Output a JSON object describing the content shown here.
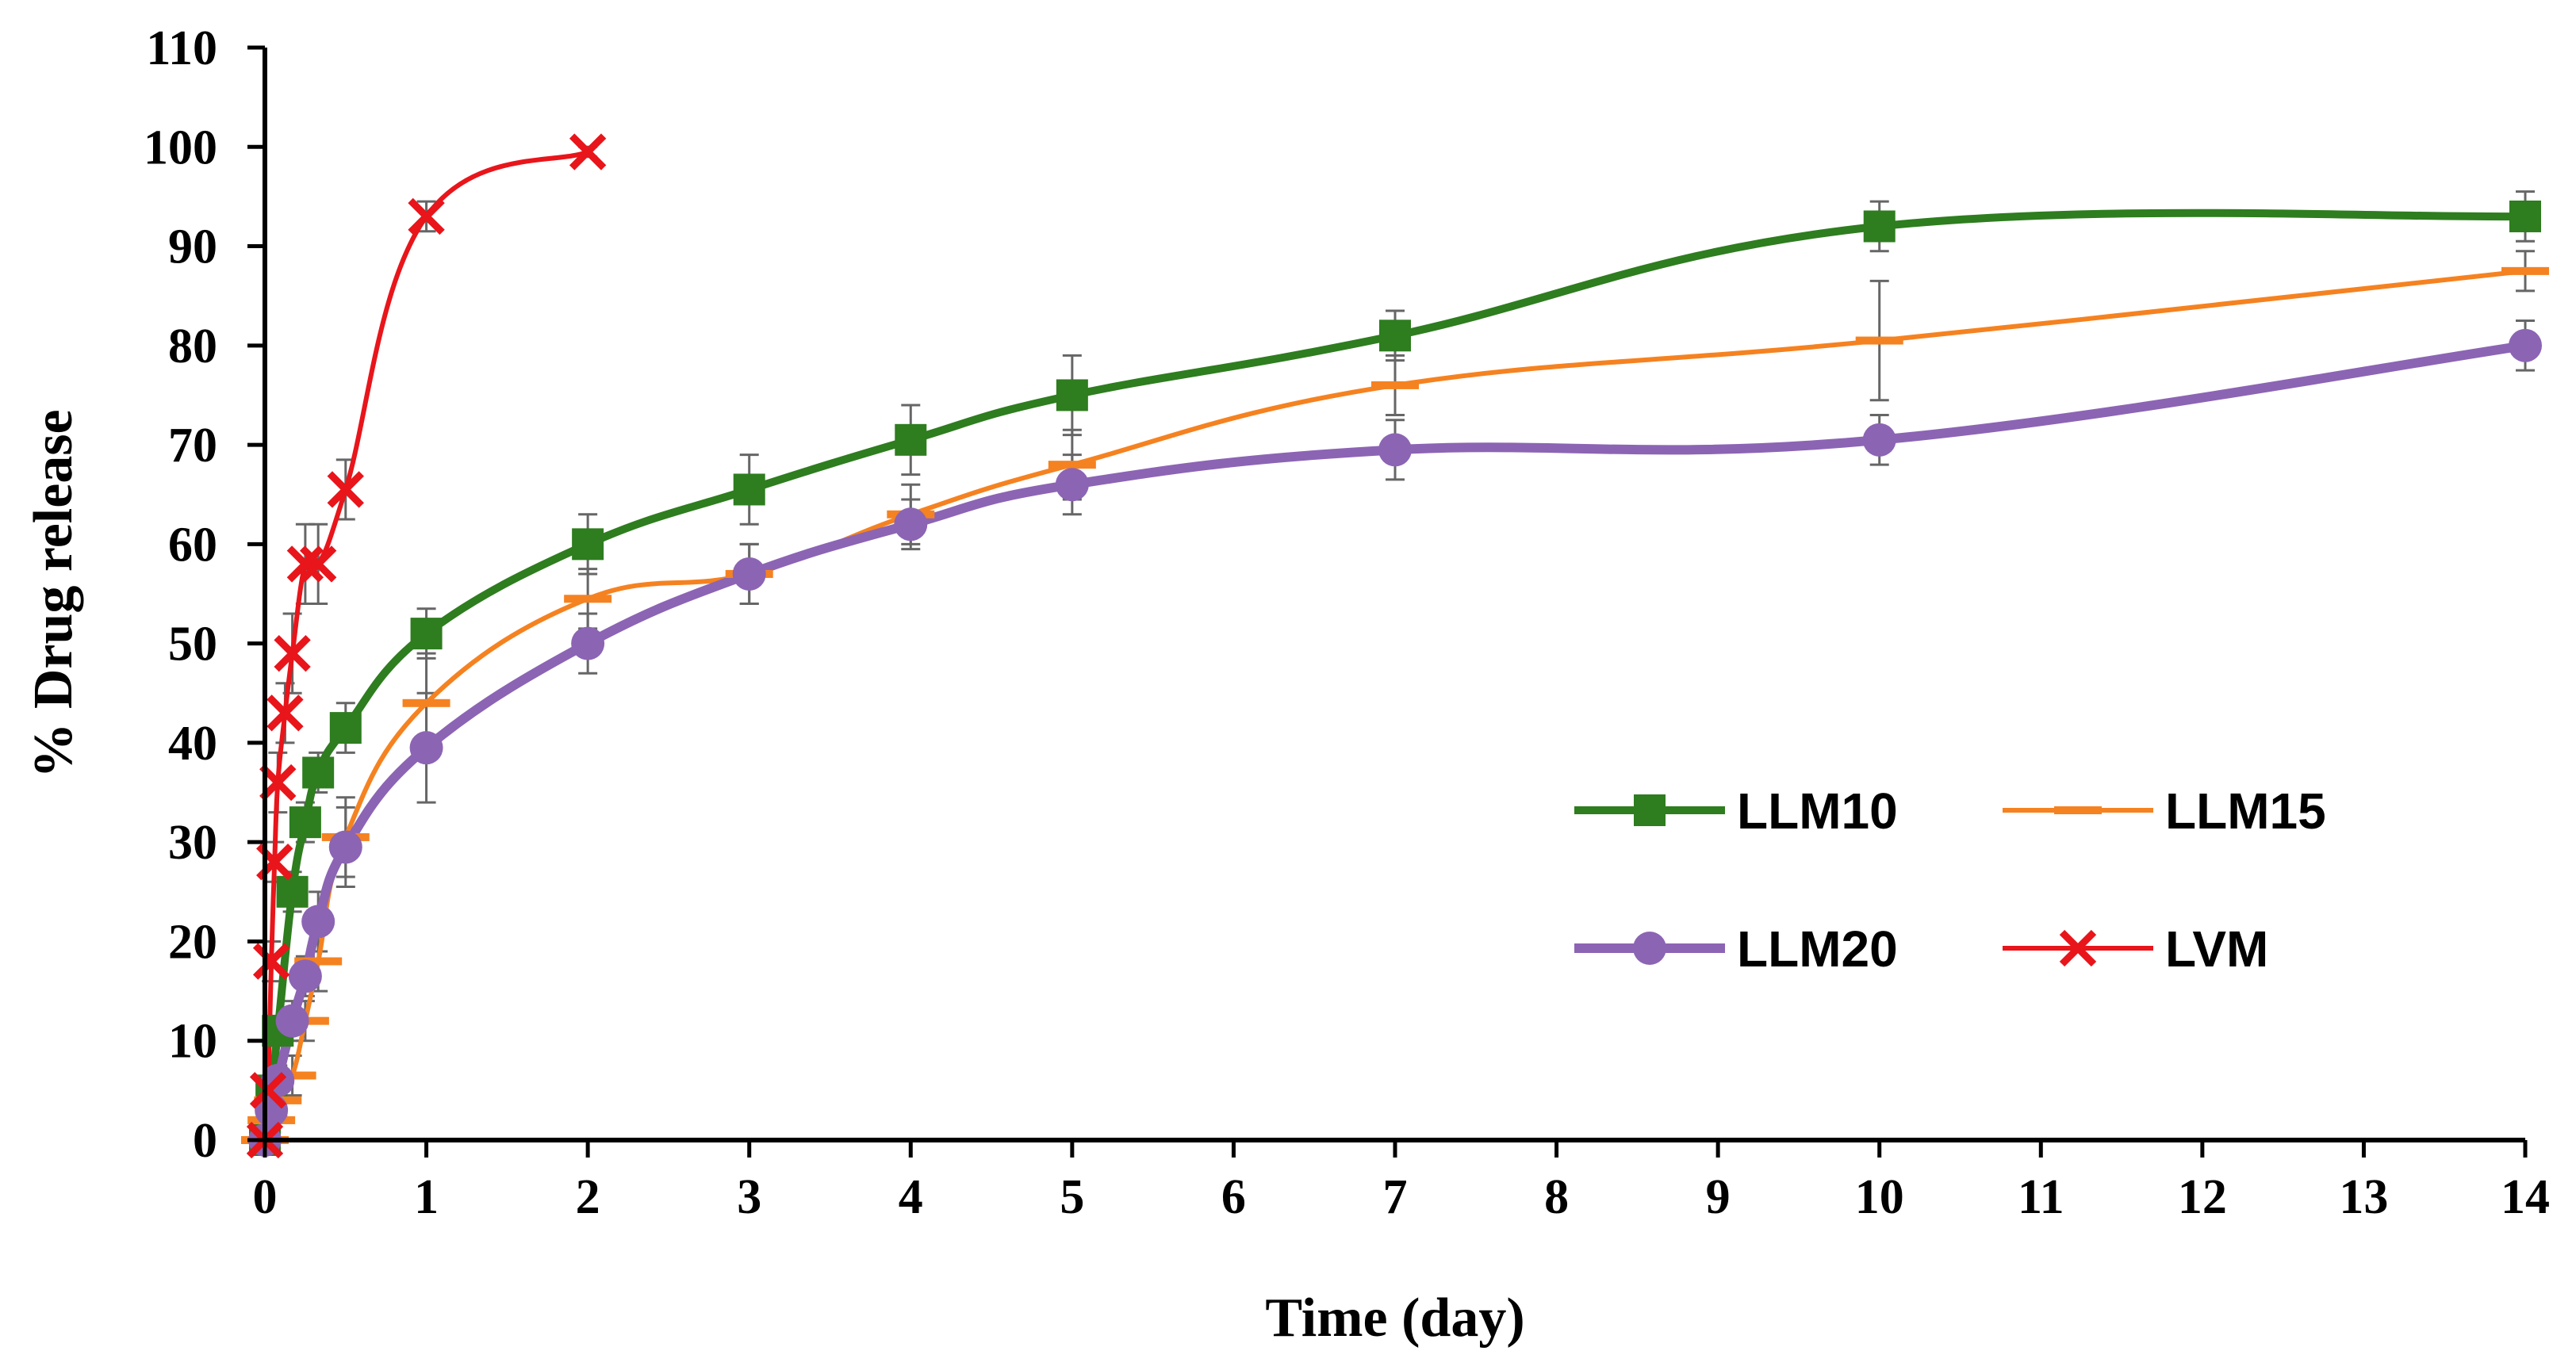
{
  "chart_data": {
    "type": "line",
    "title": "",
    "xlabel": "Time (day)",
    "ylabel": "% Drug release",
    "xlim": [
      0,
      14
    ],
    "ylim": [
      0,
      110
    ],
    "xticks": [
      0,
      1,
      2,
      3,
      4,
      5,
      6,
      7,
      8,
      9,
      10,
      11,
      12,
      13,
      14
    ],
    "yticks": [
      0,
      10,
      20,
      30,
      40,
      50,
      60,
      70,
      80,
      90,
      100,
      110
    ],
    "grid": false,
    "legend_placement": "center-right",
    "series": [
      {
        "name": "LLM10",
        "color": "#2e7d1f",
        "marker": "square",
        "x": [
          0,
          0.04,
          0.08,
          0.17,
          0.25,
          0.33,
          0.5,
          1,
          2,
          3,
          4,
          5,
          7,
          10,
          14
        ],
        "y": [
          0,
          5,
          11,
          25,
          32,
          37,
          41.5,
          51,
          60,
          65.5,
          70.5,
          75,
          81,
          92,
          93
        ],
        "err": [
          0,
          1,
          1.5,
          2,
          2,
          2,
          2.5,
          2.5,
          3,
          3.5,
          3.5,
          4,
          2.5,
          2.5,
          2.5
        ]
      },
      {
        "name": "LLM15",
        "color": "#f58220",
        "marker": "dash",
        "x": [
          0,
          0.04,
          0.08,
          0.17,
          0.25,
          0.33,
          0.5,
          1,
          2,
          3,
          4,
          5,
          7,
          10,
          14
        ],
        "y": [
          0,
          2,
          4,
          6.5,
          12,
          18,
          30.5,
          44,
          54.5,
          57,
          63,
          68,
          76,
          80.5,
          87.5
        ],
        "err": [
          0,
          1,
          1.5,
          2,
          2,
          3,
          4,
          5,
          3,
          3,
          3,
          3.5,
          3,
          6,
          2
        ]
      },
      {
        "name": "LLM20",
        "color": "#8c64b4",
        "marker": "circle",
        "x": [
          0,
          0.04,
          0.08,
          0.17,
          0.25,
          0.33,
          0.5,
          1,
          2,
          3,
          4,
          5,
          7,
          10,
          14
        ],
        "y": [
          0,
          3,
          6,
          12,
          16.5,
          22,
          29.5,
          39.5,
          50,
          57,
          62,
          66,
          69.5,
          70.5,
          80
        ],
        "err": [
          0,
          1,
          1.5,
          2,
          2,
          3,
          4,
          5.5,
          3,
          3,
          2.5,
          3,
          3,
          2.5,
          2.5
        ]
      },
      {
        "name": "LVM",
        "color": "#e8151b",
        "marker": "x",
        "x": [
          0,
          0.02,
          0.04,
          0.06,
          0.08,
          0.125,
          0.17,
          0.25,
          0.33,
          0.5,
          1,
          2
        ],
        "y": [
          0,
          5,
          18,
          28,
          36,
          43,
          49,
          58,
          58,
          65.5,
          93,
          99.5
        ],
        "err": [
          0,
          1,
          2,
          2,
          3,
          3,
          4,
          4,
          4,
          3,
          1.5,
          0.5
        ]
      }
    ]
  }
}
